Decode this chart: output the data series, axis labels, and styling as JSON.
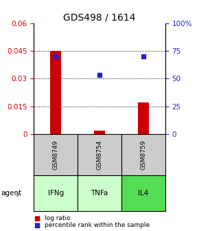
{
  "title": "GDS498 / 1614",
  "samples": [
    "IFNg",
    "TNFa",
    "IL4"
  ],
  "gsm_labels": [
    "GSM8749",
    "GSM8754",
    "GSM8759"
  ],
  "log_ratio": [
    0.045,
    0.002,
    0.017
  ],
  "percentile_rank": [
    70.0,
    53.0,
    70.0
  ],
  "left_ylim": [
    0,
    0.06
  ],
  "right_ylim": [
    0,
    100
  ],
  "left_yticks": [
    0,
    0.015,
    0.03,
    0.045,
    0.06
  ],
  "right_yticks": [
    0,
    25,
    50,
    75,
    100
  ],
  "right_yticklabels": [
    "0",
    "25",
    "50",
    "75",
    "100%"
  ],
  "bar_color": "#cc0000",
  "dot_color": "#2222cc",
  "gsm_bg": "#cccccc",
  "agent_bg_light": "#ccffcc",
  "agent_bg_dark": "#55dd55",
  "title_fontsize": 10,
  "tick_fontsize": 7.5,
  "gsm_fontsize": 6.5,
  "agent_fontsize": 7.5,
  "legend_fontsize": 6.5
}
